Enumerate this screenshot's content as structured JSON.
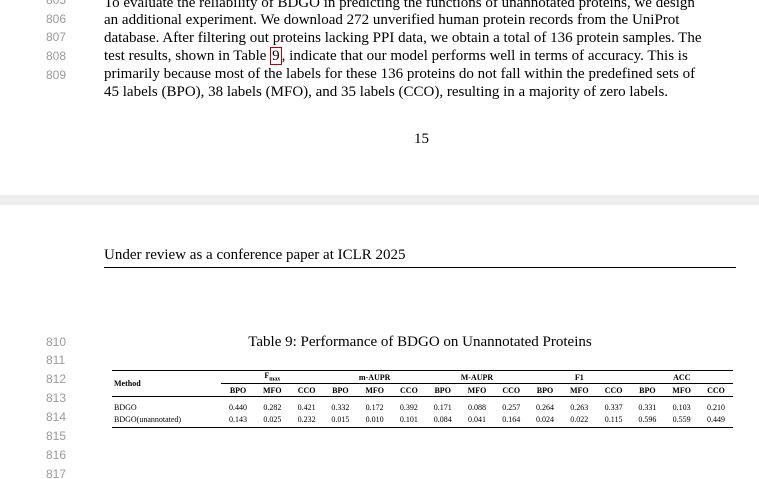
{
  "page_top": {
    "line_numbers": [
      "805",
      "806",
      "807",
      "808",
      "809"
    ],
    "lines": [
      {
        "text": "To evaluate the reliability of BDGO in predicting the functions of unannotated proteins, we design"
      },
      {
        "text": "an additional experiment. We download 272 unverified human protein records from the UniProt"
      },
      {
        "text": "database. After filtering out proteins lacking PPI data, we obtain a total of 136 protein samples. The"
      },
      {
        "pre": "test results, shown in Table ",
        "ref": "9",
        "post": ", indicate that our model performs well in terms of accuracy. This is"
      },
      {
        "text": "primarily because most of the labels for these 136 proteins do not fall within the predefined sets of"
      },
      {
        "text": "45 labels (BPO), 38 labels (MFO), and 35 labels (CCO), resulting in a majority of zero labels."
      }
    ],
    "page_number": "15"
  },
  "page_bottom": {
    "header": "Under review as a conference paper at ICLR 2025",
    "line_numbers": [
      "810",
      "811",
      "812",
      "813",
      "814",
      "815",
      "816",
      "817"
    ],
    "table": {
      "caption": "Table 9: Performance of BDGO on Unannotated Proteins",
      "method_header": "Method",
      "groups": [
        {
          "name": "F",
          "sub": "max"
        },
        {
          "name": "m-AUPR"
        },
        {
          "name": "M-AUPR"
        },
        {
          "name": "F1"
        },
        {
          "name": "ACC"
        }
      ],
      "subheaders": [
        "BPO",
        "MFO",
        "CCO"
      ],
      "rows": [
        {
          "method": "BDGO",
          "values": [
            "0.440",
            "0.282",
            "0.421",
            "0.332",
            "0.172",
            "0.392",
            "0.171",
            "0.088",
            "0.257",
            "0.264",
            "0.263",
            "0.337",
            "0.331",
            "0.103",
            "0.210"
          ]
        },
        {
          "method": "BDGO(unannotated)",
          "values": [
            "0.143",
            "0.025",
            "0.232",
            "0.015",
            "0.010",
            "0.101",
            "0.084",
            "0.041",
            "0.164",
            "0.024",
            "0.022",
            "0.115",
            "0.596",
            "0.559",
            "0.449"
          ]
        }
      ]
    }
  }
}
